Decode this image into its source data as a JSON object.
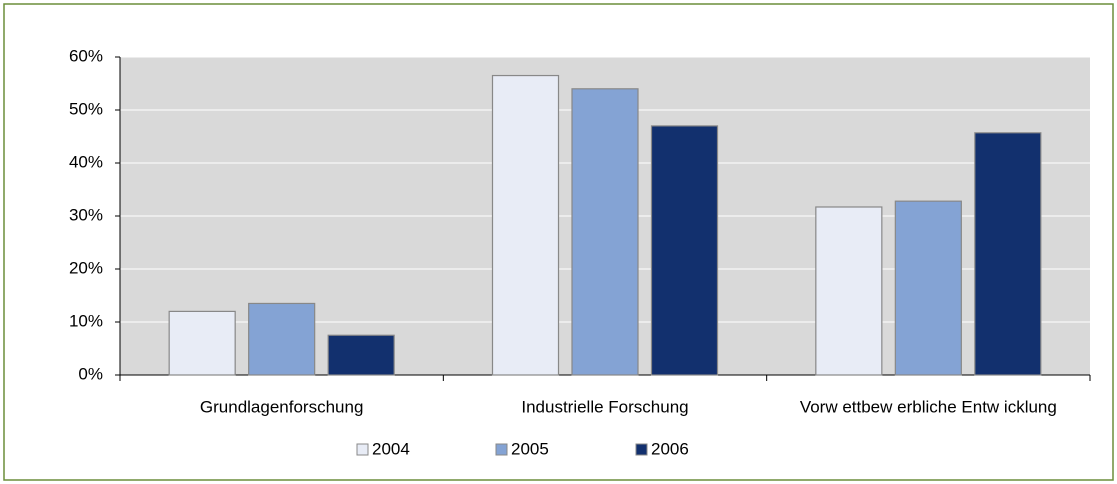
{
  "chart_data": {
    "type": "bar",
    "categories": [
      "Grundlagenforschung",
      "Industrielle Forschung",
      "Vorw ettbew erbliche Entw icklung"
    ],
    "series": [
      {
        "name": "2004",
        "color": "#e8ecf6",
        "values": [
          12,
          56.5,
          31.7
        ]
      },
      {
        "name": "2005",
        "color": "#84a3d4",
        "values": [
          13.5,
          54,
          32.8
        ]
      },
      {
        "name": "2006",
        "color": "#12306e",
        "values": [
          7.5,
          47,
          45.7
        ]
      }
    ],
    "ylim": [
      0,
      60
    ],
    "yticks": [
      {
        "value": 0,
        "label": "0%"
      },
      {
        "value": 10,
        "label": "10%"
      },
      {
        "value": 20,
        "label": "20%"
      },
      {
        "value": 30,
        "label": "30%"
      },
      {
        "value": 40,
        "label": "40%"
      },
      {
        "value": 50,
        "label": "50%"
      },
      {
        "value": 60,
        "label": "60%"
      }
    ],
    "grid": true,
    "legend": "bottom"
  }
}
